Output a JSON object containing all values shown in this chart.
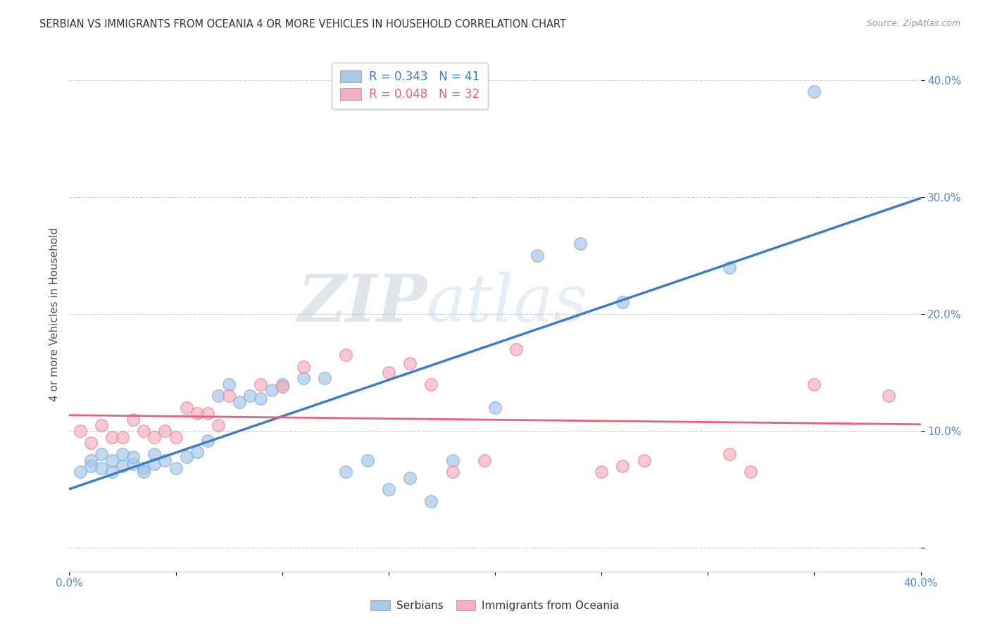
{
  "title": "SERBIAN VS IMMIGRANTS FROM OCEANIA 4 OR MORE VEHICLES IN HOUSEHOLD CORRELATION CHART",
  "source": "Source: ZipAtlas.com",
  "ylabel": "4 or more Vehicles in Household",
  "serbian_R": 0.343,
  "serbian_N": 41,
  "oceania_R": 0.048,
  "oceania_N": 32,
  "serbian_color": "#a8c8e8",
  "serbian_edge_color": "#7aaed4",
  "oceania_color": "#f4b0c0",
  "oceania_edge_color": "#e88098",
  "serbian_line_color": "#3d7cc9",
  "oceania_line_color": "#e8607a",
  "background_color": "#ffffff",
  "grid_color": "#cccccc",
  "xrange": [
    0.0,
    0.4
  ],
  "yrange": [
    -0.02,
    0.42
  ],
  "watermark_ZIP": "ZIP",
  "watermark_atlas": "atlas",
  "serbian_x": [
    0.005,
    0.01,
    0.01,
    0.015,
    0.015,
    0.02,
    0.02,
    0.025,
    0.025,
    0.03,
    0.03,
    0.035,
    0.035,
    0.04,
    0.04,
    0.045,
    0.05,
    0.055,
    0.06,
    0.065,
    0.07,
    0.075,
    0.08,
    0.085,
    0.09,
    0.095,
    0.1,
    0.11,
    0.12,
    0.13,
    0.14,
    0.15,
    0.16,
    0.17,
    0.18,
    0.2,
    0.22,
    0.24,
    0.26,
    0.31,
    0.35
  ],
  "serbian_y": [
    0.065,
    0.075,
    0.07,
    0.068,
    0.08,
    0.065,
    0.075,
    0.08,
    0.07,
    0.072,
    0.078,
    0.068,
    0.065,
    0.072,
    0.08,
    0.075,
    0.068,
    0.078,
    0.082,
    0.092,
    0.13,
    0.14,
    0.125,
    0.13,
    0.128,
    0.135,
    0.14,
    0.145,
    0.145,
    0.065,
    0.075,
    0.05,
    0.06,
    0.04,
    0.075,
    0.12,
    0.25,
    0.26,
    0.21,
    0.24,
    0.39
  ],
  "oceania_x": [
    0.005,
    0.01,
    0.015,
    0.02,
    0.025,
    0.03,
    0.035,
    0.04,
    0.045,
    0.05,
    0.055,
    0.06,
    0.065,
    0.07,
    0.075,
    0.09,
    0.1,
    0.11,
    0.13,
    0.15,
    0.16,
    0.17,
    0.18,
    0.195,
    0.21,
    0.25,
    0.26,
    0.27,
    0.31,
    0.32,
    0.35,
    0.385
  ],
  "oceania_y": [
    0.1,
    0.09,
    0.105,
    0.095,
    0.095,
    0.11,
    0.1,
    0.095,
    0.1,
    0.095,
    0.12,
    0.115,
    0.115,
    0.105,
    0.13,
    0.14,
    0.138,
    0.155,
    0.165,
    0.15,
    0.158,
    0.14,
    0.065,
    0.075,
    0.17,
    0.065,
    0.07,
    0.075,
    0.08,
    0.065,
    0.14,
    0.13
  ]
}
